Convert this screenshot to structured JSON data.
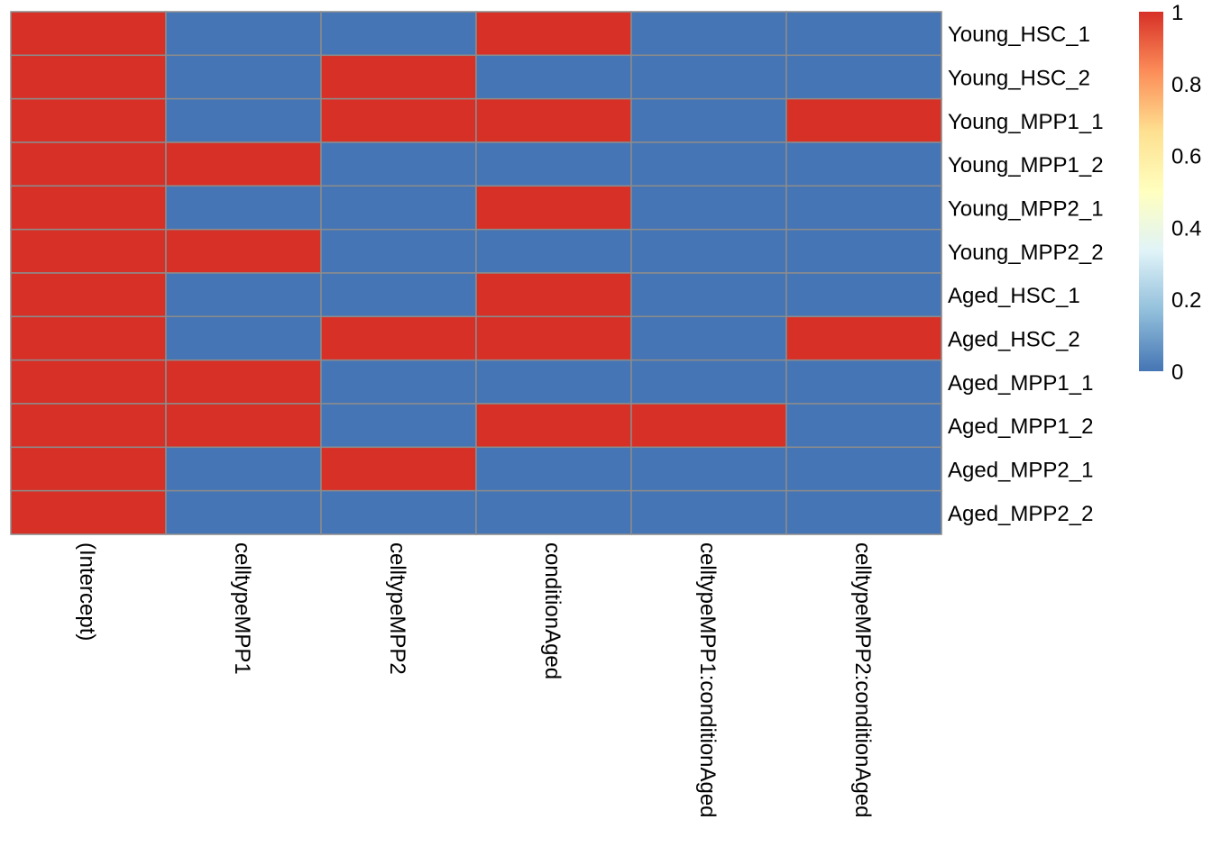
{
  "chart_data": {
    "type": "heatmap",
    "title": "",
    "xlabel": "",
    "ylabel": "",
    "columns": [
      "(Intercept)",
      "celltypeMPP1",
      "celltypeMPP2",
      "conditionAged",
      "celltypeMPP1:conditionAged",
      "celltypeMPP2:conditionAged"
    ],
    "rows": [
      "Young_HSC_1",
      "Young_HSC_2",
      "Young_MPP1_1",
      "Young_MPP1_2",
      "Young_MPP2_1",
      "Young_MPP2_2",
      "Aged_HSC_1",
      "Aged_HSC_2",
      "Aged_MPP1_1",
      "Aged_MPP1_2",
      "Aged_MPP2_1",
      "Aged_MPP2_2"
    ],
    "values": [
      [
        1,
        0,
        0,
        1,
        0,
        0
      ],
      [
        1,
        0,
        1,
        0,
        0,
        0
      ],
      [
        1,
        0,
        1,
        1,
        0,
        1
      ],
      [
        1,
        1,
        0,
        0,
        0,
        0
      ],
      [
        1,
        0,
        0,
        1,
        0,
        0
      ],
      [
        1,
        1,
        0,
        0,
        0,
        0
      ],
      [
        1,
        0,
        0,
        1,
        0,
        0
      ],
      [
        1,
        0,
        1,
        1,
        0,
        1
      ],
      [
        1,
        1,
        0,
        0,
        0,
        0
      ],
      [
        1,
        1,
        0,
        1,
        1,
        0
      ],
      [
        1,
        0,
        1,
        0,
        0,
        0
      ],
      [
        1,
        0,
        0,
        0,
        0,
        0
      ]
    ],
    "value_range": [
      0,
      1
    ],
    "legend": {
      "position": "top-right",
      "ticks": [
        "0",
        "0.2",
        "0.4",
        "0.6",
        "0.8",
        "1"
      ],
      "colors": [
        "#4575B4",
        "#91BFDB",
        "#E0F3F8",
        "#FFFFBF",
        "#FEE090",
        "#FC8D59",
        "#D73027"
      ]
    },
    "grid_color": "#8C8C8C"
  }
}
